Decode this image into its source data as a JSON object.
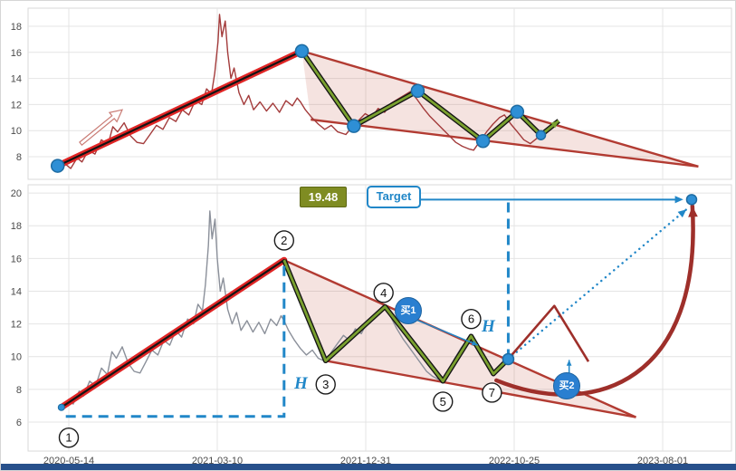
{
  "figure": {
    "background": "#ffffff",
    "border_color": "#d6d6d6"
  },
  "colors": {
    "grid": "#e4e4e4",
    "axis_text": "#4a4a4a",
    "price_top": "#a33b3b",
    "price_bottom": "#8b909a",
    "trend_red": "#e02525",
    "trend_core": "#141414",
    "wedge_line": "#b23b32",
    "wedge_fill": "rgba(195,80,65,0.16)",
    "zigzag_green": "#7aa12f",
    "zigzag_core": "#141414",
    "dot_blue": "#2e8fd5",
    "dot_edge": "#1d6ca3",
    "anno_blue": "#2187c8",
    "maroon": "#9e2f2a",
    "level_box_bg": "#7f8c22",
    "badge_blue": "#2a7fd0",
    "navy_bar": "#27508b"
  },
  "chart_data": {
    "type": "line",
    "x_axis_note": "x values are in date-tick units: 0=2020-05-14, 1=2021-03-10, 2=2021-12-31, 3=2022-10-25, 4=2023-08-01",
    "shared_price_series": [
      [
        -0.05,
        6.9
      ],
      [
        0.0,
        7.4
      ],
      [
        0.03,
        7.1
      ],
      [
        0.07,
        7.9
      ],
      [
        0.1,
        7.6
      ],
      [
        0.14,
        8.5
      ],
      [
        0.18,
        8.2
      ],
      [
        0.22,
        9.3
      ],
      [
        0.26,
        8.9
      ],
      [
        0.29,
        10.3
      ],
      [
        0.32,
        9.9
      ],
      [
        0.36,
        10.6
      ],
      [
        0.4,
        9.6
      ],
      [
        0.44,
        9.1
      ],
      [
        0.48,
        9.0
      ],
      [
        0.52,
        9.7
      ],
      [
        0.56,
        10.4
      ],
      [
        0.6,
        10.1
      ],
      [
        0.64,
        11.0
      ],
      [
        0.68,
        10.7
      ],
      [
        0.72,
        11.6
      ],
      [
        0.76,
        11.2
      ],
      [
        0.8,
        12.3
      ],
      [
        0.84,
        12.0
      ],
      [
        0.87,
        13.2
      ],
      [
        0.9,
        12.8
      ],
      [
        0.92,
        14.4
      ],
      [
        0.94,
        16.8
      ],
      [
        0.95,
        18.9
      ],
      [
        0.965,
        17.2
      ],
      [
        0.985,
        18.4
      ],
      [
        1.0,
        16.0
      ],
      [
        1.02,
        14.0
      ],
      [
        1.04,
        14.8
      ],
      [
        1.07,
        12.9
      ],
      [
        1.1,
        12.0
      ],
      [
        1.13,
        12.7
      ],
      [
        1.16,
        11.6
      ],
      [
        1.2,
        12.2
      ],
      [
        1.24,
        11.5
      ],
      [
        1.28,
        12.1
      ],
      [
        1.32,
        11.4
      ],
      [
        1.36,
        12.3
      ],
      [
        1.4,
        11.9
      ],
      [
        1.43,
        12.5
      ],
      [
        1.45,
        12.2
      ],
      [
        1.48,
        11.6
      ],
      [
        1.52,
        11.0
      ],
      [
        1.56,
        10.5
      ],
      [
        1.6,
        10.1
      ],
      [
        1.64,
        10.4
      ],
      [
        1.68,
        9.9
      ],
      [
        1.73,
        9.7
      ],
      [
        1.77,
        10.3
      ],
      [
        1.81,
        10.8
      ],
      [
        1.85,
        11.3
      ],
      [
        1.89,
        11.0
      ],
      [
        1.93,
        11.7
      ],
      [
        1.97,
        11.4
      ],
      [
        2.01,
        12.1
      ],
      [
        2.05,
        12.4
      ],
      [
        2.09,
        12.7
      ],
      [
        2.13,
        13.0
      ],
      [
        2.17,
        12.4
      ],
      [
        2.21,
        11.7
      ],
      [
        2.25,
        11.1
      ],
      [
        2.29,
        10.6
      ],
      [
        2.33,
        10.1
      ],
      [
        2.37,
        9.6
      ],
      [
        2.41,
        9.1
      ],
      [
        2.45,
        8.8
      ],
      [
        2.49,
        8.6
      ],
      [
        2.52,
        8.5
      ],
      [
        2.56,
        9.2
      ],
      [
        2.6,
        9.9
      ],
      [
        2.64,
        10.5
      ],
      [
        2.68,
        11.0
      ],
      [
        2.71,
        11.2
      ],
      [
        2.75,
        10.5
      ],
      [
        2.79,
        9.9
      ],
      [
        2.83,
        9.3
      ],
      [
        2.87,
        9.0
      ],
      [
        2.91,
        9.4
      ],
      [
        2.96,
        9.8
      ]
    ],
    "charts": [
      {
        "id": "top",
        "y_ticks": [
          8,
          10,
          12,
          14,
          16,
          18
        ],
        "x_ticks": [],
        "ylim": [
          6.8,
          19.6
        ],
        "grid": true,
        "series_x_scale": 1.09,
        "series_x_offset": -0.02,
        "trend_up": {
          "from": [
            -0.075,
            7.3
          ],
          "to": [
            1.57,
            16.1
          ]
        },
        "wedge": {
          "upper_start": [
            1.57,
            16.1
          ],
          "lower_start": [
            1.63,
            10.85
          ],
          "apex": [
            4.24,
            7.25
          ]
        },
        "zigzag": [
          [
            1.57,
            16.1
          ],
          [
            1.92,
            10.35
          ],
          [
            2.35,
            13.05
          ],
          [
            2.79,
            9.2
          ],
          [
            3.02,
            11.45
          ],
          [
            3.18,
            9.65
          ],
          [
            3.3,
            10.75
          ]
        ],
        "pivot_dots": [
          [
            -0.075,
            7.3
          ],
          [
            1.57,
            16.1
          ],
          [
            1.92,
            10.35
          ],
          [
            2.35,
            13.05
          ],
          [
            2.79,
            9.2
          ],
          [
            3.02,
            11.45
          ],
          [
            3.18,
            9.65
          ]
        ],
        "sketch_arrow": {
          "from": [
            0.08,
            9.0
          ],
          "to": [
            0.36,
            11.6
          ]
        }
      },
      {
        "id": "bottom",
        "y_ticks": [
          6,
          8,
          10,
          12,
          14,
          16,
          18,
          20
        ],
        "x_ticks": [
          "2020-05-14",
          "2021-03-10",
          "2021-12-31",
          "2022-10-25",
          "2023-08-01"
        ],
        "ylim": [
          4.5,
          20.8
        ],
        "grid": true,
        "series_x_scale": 1,
        "series_x_offset": 0,
        "trend_up": {
          "from": [
            -0.05,
            6.9
          ],
          "to": [
            1.45,
            15.9
          ]
        },
        "wedge": {
          "upper_start": [
            1.45,
            15.9
          ],
          "lower_start": [
            1.73,
            9.75
          ],
          "apex": [
            3.82,
            6.3
          ]
        },
        "zigzag": [
          [
            1.45,
            15.9
          ],
          [
            1.73,
            9.75
          ],
          [
            2.13,
            13.05
          ],
          [
            2.52,
            8.5
          ],
          [
            2.71,
            11.25
          ],
          [
            2.86,
            8.95
          ],
          [
            2.96,
            9.85
          ]
        ],
        "start_dot": [
          -0.05,
          6.9
        ],
        "breakout_dot": [
          2.96,
          9.85
        ],
        "target_dot": [
          4.195,
          19.6
        ],
        "target_level": 19.48,
        "measure_h1": {
          "start": [
            -0.02,
            6.35
          ],
          "corner": [
            1.45,
            6.35
          ],
          "top": [
            1.45,
            15.9
          ]
        },
        "measure_v2": {
          "x": 2.96,
          "from_v": 9.85,
          "to_v": 19.6
        },
        "target_arrow": {
          "from": [
            2.372,
            19.6
          ],
          "to": [
            4.09,
            19.6
          ]
        },
        "projection_dotted": {
          "from": [
            2.96,
            9.85
          ],
          "to": [
            4.16,
            19.0
          ]
        },
        "pullback_path": [
          [
            2.96,
            9.85
          ],
          [
            3.27,
            13.1
          ],
          [
            3.5,
            9.7
          ]
        ],
        "curve_arrow": {
          "p0": [
            2.88,
            8.55
          ],
          "c1": [
            3.55,
            6.1
          ],
          "c2": [
            4.27,
            8.6
          ],
          "p1": [
            4.2,
            19.2
          ]
        },
        "buy1_pointer": {
          "from": [
            2.34,
            12.25
          ],
          "to": [
            2.755,
            10.7
          ]
        },
        "buy2_pointer": {
          "from": [
            3.37,
            8.9
          ],
          "to": [
            3.37,
            9.8
          ]
        },
        "annotations": {
          "price_level": "19.48",
          "target": "Target",
          "buy1": "买1",
          "buy2": "买2",
          "h1": "H",
          "h2": "H",
          "pivots": [
            {
              "label": "1",
              "at": [
                0.0,
                5.05
              ]
            },
            {
              "label": "2",
              "at": [
                1.45,
                17.1
              ]
            },
            {
              "label": "3",
              "at": [
                1.73,
                8.3
              ]
            },
            {
              "label": "4",
              "at": [
                2.12,
                13.9
              ]
            },
            {
              "label": "5",
              "at": [
                2.52,
                7.25
              ]
            },
            {
              "label": "6",
              "at": [
                2.71,
                12.3
              ]
            },
            {
              "label": "7",
              "at": [
                2.85,
                7.8
              ]
            }
          ]
        }
      }
    ]
  }
}
